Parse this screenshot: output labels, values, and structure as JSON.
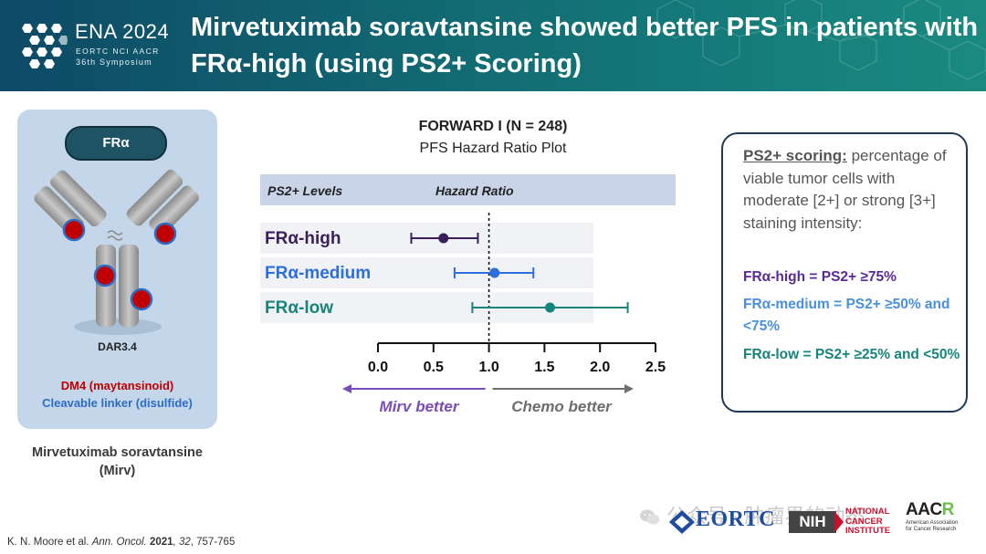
{
  "header": {
    "logo_title": "ENA 2024",
    "logo_org": "EORTC NCI AACR",
    "logo_symposium": "36th Symposium",
    "slide_title": "Mirvetuximab soravtansine showed better PFS in patients with FRα-high (using PS2+ Scoring)"
  },
  "drug_panel": {
    "target": "FRα",
    "dar": "DAR3.4",
    "payload": "DM4 (maytansinoid)",
    "linker": "Cleavable linker (disulfide)",
    "caption": "Mirvetuximab soravtansine (Mirv)"
  },
  "chart_header": {
    "study": "FORWARD I (N = 248)",
    "subtitle": "PFS Hazard Ratio Plot"
  },
  "chart_data": {
    "type": "forest",
    "column_headers": [
      "PS2+ Levels",
      "Hazard Ratio"
    ],
    "x_ticks": [
      "0.0",
      "0.5",
      "1.0",
      "1.5",
      "2.0",
      "2.5"
    ],
    "xlim": [
      0,
      2.5
    ],
    "reference_line": 1.0,
    "rows": [
      {
        "label": "FRα-high",
        "hr": 0.59,
        "lo": 0.3,
        "hi": 0.9,
        "color": "#3b1f5c"
      },
      {
        "label": "FRα-medium",
        "hr": 1.05,
        "lo": 0.69,
        "hi": 1.4,
        "color": "#2a6fdb"
      },
      {
        "label": "FRα-low",
        "hr": 1.55,
        "lo": 0.85,
        "hi": 2.25,
        "color": "#17847c"
      }
    ],
    "left_arrow_label": "Mirv better",
    "right_arrow_label": "Chemo better",
    "left_arrow_color": "#7b4cb5",
    "right_arrow_color": "#6e6e6e"
  },
  "definition": {
    "term": "PS2+ scoring:",
    "text": " percentage of viable tumor cells with moderate [2+] or strong [3+] staining intensity:",
    "high": "FRα-high = PS2+ ≥75%",
    "medium": "FRα-medium = PS2+ ≥50% and <75%",
    "low": "FRα-low = PS2+ ≥25% and <50%"
  },
  "citation": {
    "authors": "K. N. Moore et al. ",
    "journal": "Ann. Oncol.",
    "year": " 2021",
    "rest_volume": ", 32",
    "pages": ", 757-765"
  },
  "footer": {
    "watermark": "公众号 · 肿瘤界的动态",
    "eortc": "EORTC",
    "nih_box": "NIH",
    "nih_line1": "NATIONAL",
    "nih_line2": "CANCER",
    "nih_line3": "INSTITUTE",
    "aacr_main": "AAC",
    "aacr_r": "R",
    "aacr_sub1": "American Association",
    "aacr_sub2": "for Cancer Research"
  }
}
